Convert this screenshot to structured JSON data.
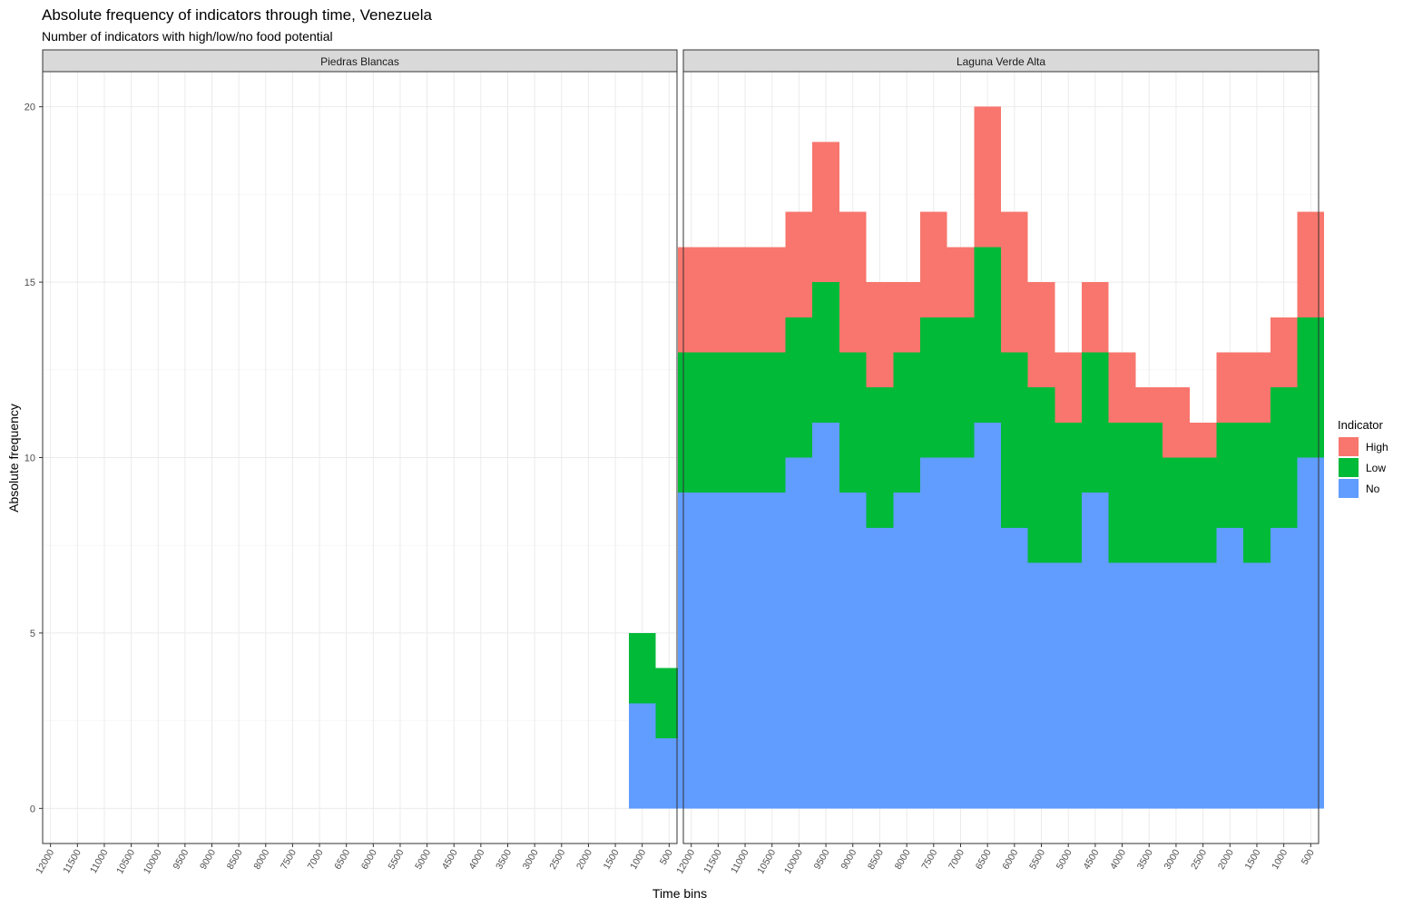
{
  "chart_data": {
    "type": "bar",
    "stacked": true,
    "title": "Absolute frequency of indicators through time, Venezuela",
    "subtitle": "Number of indicators with high/low/no food potential",
    "xlabel": "Time bins",
    "ylabel": "Absolute frequency",
    "ylim": [
      -1,
      21
    ],
    "yticks": [
      0,
      5,
      10,
      15,
      20
    ],
    "grid": true,
    "legend": {
      "title": "Indicator",
      "position": "right"
    },
    "categories": [
      "12000",
      "11500",
      "11000",
      "10500",
      "10000",
      "9500",
      "9000",
      "8500",
      "8000",
      "7500",
      "7000",
      "6500",
      "6000",
      "5500",
      "5000",
      "4500",
      "4000",
      "3500",
      "3000",
      "2500",
      "2000",
      "1500",
      "1000",
      "500"
    ],
    "series_meta": [
      {
        "name": "High",
        "color": "#F8766D"
      },
      {
        "name": "Low",
        "color": "#00BA38"
      },
      {
        "name": "No",
        "color": "#619CFF"
      }
    ],
    "panels": [
      {
        "name": "Piedras Blancas",
        "series": [
          {
            "name": "High",
            "values": [
              0,
              0,
              0,
              0,
              0,
              0,
              0,
              0,
              0,
              0,
              0,
              0,
              0,
              0,
              0,
              0,
              0,
              0,
              0,
              0,
              0,
              0,
              0,
              0
            ]
          },
          {
            "name": "Low",
            "values": [
              0,
              0,
              0,
              0,
              0,
              0,
              0,
              0,
              0,
              0,
              0,
              0,
              0,
              0,
              0,
              0,
              0,
              0,
              0,
              0,
              0,
              0,
              2,
              2
            ]
          },
          {
            "name": "No",
            "values": [
              0,
              0,
              0,
              0,
              0,
              0,
              0,
              0,
              0,
              0,
              0,
              0,
              0,
              0,
              0,
              0,
              0,
              0,
              0,
              0,
              0,
              0,
              3,
              2
            ]
          }
        ]
      },
      {
        "name": "Laguna Verde Alta",
        "series": [
          {
            "name": "High",
            "values": [
              3,
              3,
              3,
              3,
              3,
              4,
              4,
              3,
              2,
              3,
              2,
              4,
              4,
              3,
              2,
              2,
              2,
              1,
              2,
              1,
              2,
              2,
              2,
              3
            ]
          },
          {
            "name": "Low",
            "values": [
              4,
              4,
              4,
              4,
              4,
              4,
              4,
              4,
              4,
              4,
              4,
              5,
              5,
              5,
              4,
              4,
              4,
              4,
              3,
              3,
              3,
              4,
              4,
              4
            ]
          },
          {
            "name": "No",
            "values": [
              9,
              9,
              9,
              9,
              10,
              11,
              9,
              8,
              9,
              10,
              10,
              11,
              8,
              7,
              7,
              9,
              7,
              7,
              7,
              7,
              8,
              7,
              8,
              10
            ]
          }
        ]
      }
    ]
  }
}
